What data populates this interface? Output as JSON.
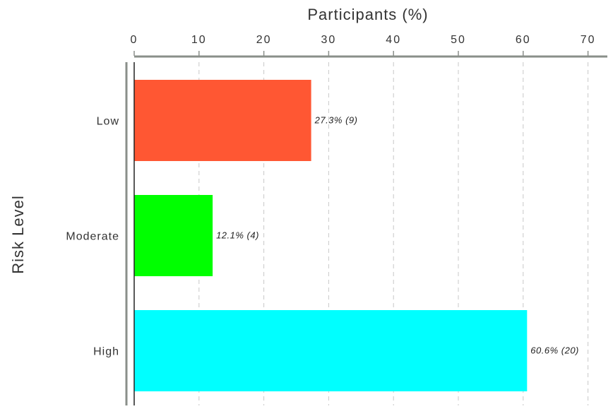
{
  "chart_data": {
    "type": "bar",
    "orientation": "horizontal",
    "title": "",
    "xlabel": "Participants (%)",
    "ylabel": "Risk Level",
    "xlim": [
      0,
      72
    ],
    "x_ticks": [
      "0",
      "10",
      "20",
      "30",
      "40",
      "50",
      "60",
      "70"
    ],
    "x_axis_position": "top",
    "grid": "vertical dashed",
    "legend": "none",
    "categories": [
      "Low",
      "Moderate",
      "High"
    ],
    "values": [
      27.3,
      12.1,
      60.6
    ],
    "counts": [
      9,
      4,
      20
    ],
    "data_labels": [
      "27.3% (9)",
      "12.1% (4)",
      "60.6% (20)"
    ],
    "colors": [
      "#ff5733",
      "#00ff00",
      "#00ffff"
    ]
  }
}
